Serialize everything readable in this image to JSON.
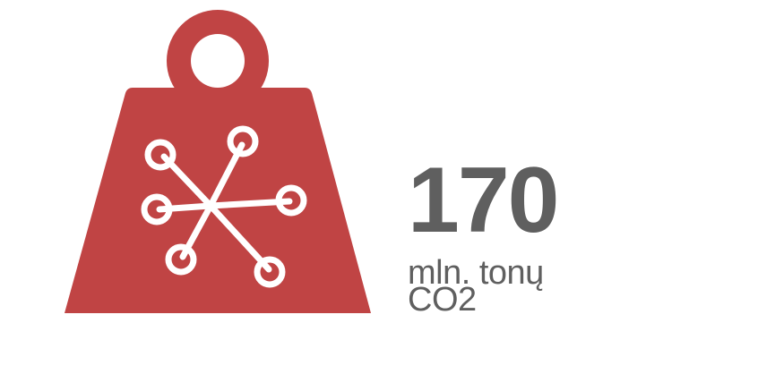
{
  "colors": {
    "weight_fill": "#c04444",
    "icon_stroke": "#ffffff",
    "text": "#5f5f5f"
  },
  "icon": {
    "name": "weight-with-molecule-icon"
  },
  "stat": {
    "value": "170",
    "unit_line1": "mln. tonų",
    "unit_line2": "CO2"
  }
}
